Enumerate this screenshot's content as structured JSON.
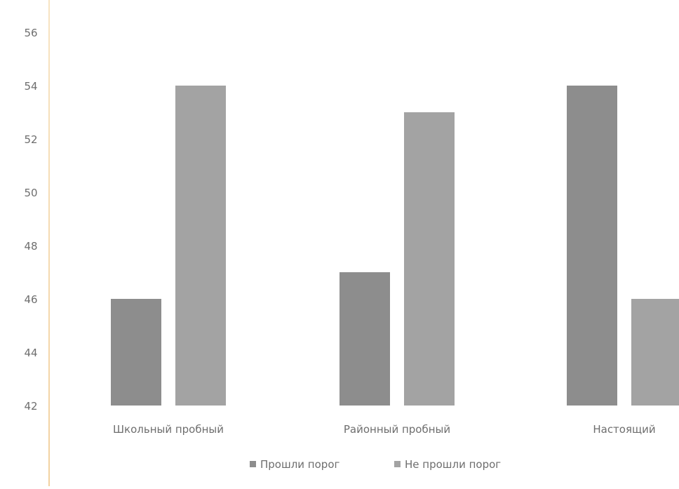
{
  "chart_data": {
    "type": "bar",
    "categories": [
      "Школьный пробный",
      "Районный пробный",
      "Настоящий"
    ],
    "series": [
      {
        "name": "Прошли порог",
        "values": [
          46,
          47,
          54
        ],
        "color": "#8d8d8d"
      },
      {
        "name": "Не прошли порог",
        "values": [
          54,
          53,
          46
        ],
        "color": "#a3a3a3"
      }
    ],
    "y_ticks": [
      "42",
      "44",
      "46",
      "48",
      "50",
      "52",
      "54",
      "56"
    ],
    "ylim": [
      42,
      56
    ],
    "grid": false,
    "legend": "bottom"
  }
}
